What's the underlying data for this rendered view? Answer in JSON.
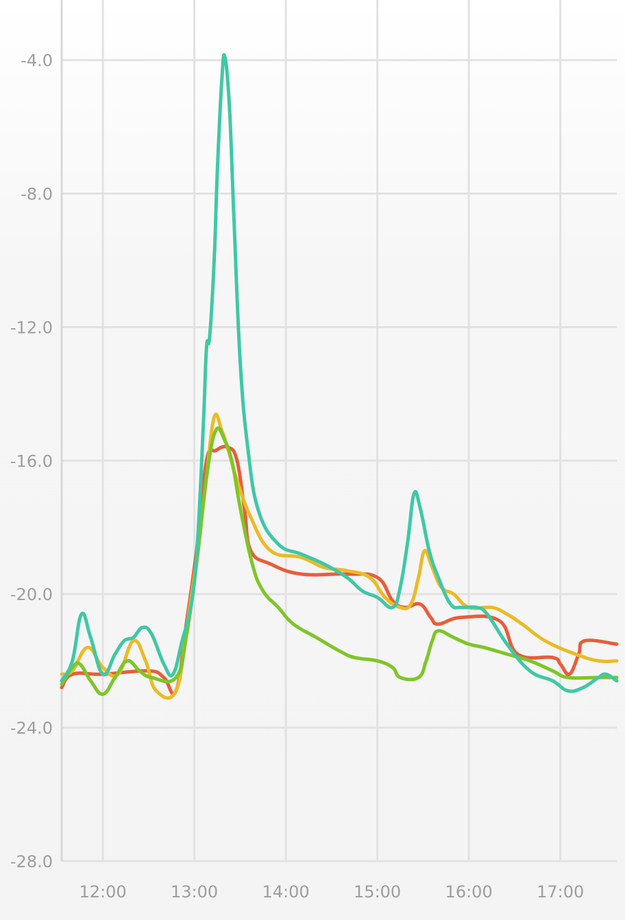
{
  "chart_data": {
    "type": "line",
    "title": "",
    "xlabel": "",
    "ylabel": "",
    "grid": true,
    "legend": "none",
    "xlim": [
      "11:33",
      "17:37"
    ],
    "ylim": [
      -28.0,
      -2.2
    ],
    "x_ticks": [
      "12:00",
      "13:00",
      "14:00",
      "15:00",
      "16:00",
      "17:00"
    ],
    "y_ticks": [
      "-4.0",
      "-8.0",
      "-12.0",
      "-16.0",
      "-20.0",
      "-24.0",
      "-28.0"
    ],
    "series": [
      {
        "color": "#e95d3a",
        "points": [
          [
            "11:33",
            -22.8
          ],
          [
            "11:40",
            -22.4
          ],
          [
            "12:00",
            -22.4
          ],
          [
            "12:30",
            -22.3
          ],
          [
            "12:40",
            -22.5
          ],
          [
            "12:48",
            -22.9
          ],
          [
            "12:55",
            -20.8
          ],
          [
            "13:02",
            -18.5
          ],
          [
            "13:08",
            -16.0
          ],
          [
            "13:14",
            -15.7
          ],
          [
            "13:22",
            -15.6
          ],
          [
            "13:28",
            -16.0
          ],
          [
            "13:33",
            -17.5
          ],
          [
            "13:37",
            -18.7
          ],
          [
            "13:50",
            -19.1
          ],
          [
            "14:10",
            -19.4
          ],
          [
            "14:40",
            -19.4
          ],
          [
            "15:00",
            -19.5
          ],
          [
            "15:10",
            -20.2
          ],
          [
            "15:18",
            -20.4
          ],
          [
            "15:28",
            -20.3
          ],
          [
            "15:35",
            -20.7
          ],
          [
            "15:40",
            -20.9
          ],
          [
            "15:55",
            -20.7
          ],
          [
            "16:20",
            -20.8
          ],
          [
            "16:32",
            -21.8
          ],
          [
            "16:55",
            -21.9
          ],
          [
            "17:00",
            -22.1
          ],
          [
            "17:06",
            -22.4
          ],
          [
            "17:12",
            -21.8
          ],
          [
            "17:16",
            -21.4
          ],
          [
            "17:37",
            -21.5
          ]
        ]
      },
      {
        "color": "#eabb27",
        "points": [
          [
            "11:33",
            -22.4
          ],
          [
            "11:40",
            -22.3
          ],
          [
            "11:50",
            -21.6
          ],
          [
            "12:00",
            -22.2
          ],
          [
            "12:10",
            -22.4
          ],
          [
            "12:20",
            -21.4
          ],
          [
            "12:28",
            -22.0
          ],
          [
            "12:35",
            -22.9
          ],
          [
            "12:48",
            -22.9
          ],
          [
            "12:55",
            -21.0
          ],
          [
            "13:02",
            -18.8
          ],
          [
            "13:08",
            -16.5
          ],
          [
            "13:13",
            -14.7
          ],
          [
            "13:18",
            -15.1
          ],
          [
            "13:23",
            -15.8
          ],
          [
            "13:28",
            -16.6
          ],
          [
            "13:37",
            -17.7
          ],
          [
            "13:50",
            -18.7
          ],
          [
            "14:10",
            -18.9
          ],
          [
            "14:25",
            -19.2
          ],
          [
            "14:40",
            -19.3
          ],
          [
            "14:55",
            -19.5
          ],
          [
            "15:05",
            -20.1
          ],
          [
            "15:15",
            -20.4
          ],
          [
            "15:22",
            -20.3
          ],
          [
            "15:27",
            -19.5
          ],
          [
            "15:31",
            -18.7
          ],
          [
            "15:36",
            -19.2
          ],
          [
            "15:42",
            -19.8
          ],
          [
            "15:50",
            -20.0
          ],
          [
            "16:00",
            -20.4
          ],
          [
            "16:15",
            -20.4
          ],
          [
            "16:25",
            -20.6
          ],
          [
            "16:35",
            -20.9
          ],
          [
            "16:50",
            -21.4
          ],
          [
            "17:10",
            -21.8
          ],
          [
            "17:25",
            -22.0
          ],
          [
            "17:37",
            -22.0
          ]
        ]
      },
      {
        "color": "#7ec627",
        "points": [
          [
            "11:33",
            -22.7
          ],
          [
            "11:40",
            -22.2
          ],
          [
            "11:45",
            -22.1
          ],
          [
            "11:52",
            -22.6
          ],
          [
            "12:00",
            -23.0
          ],
          [
            "12:08",
            -22.5
          ],
          [
            "12:16",
            -22.0
          ],
          [
            "12:24",
            -22.3
          ],
          [
            "12:32",
            -22.5
          ],
          [
            "12:48",
            -22.5
          ],
          [
            "12:55",
            -21.2
          ],
          [
            "13:02",
            -18.9
          ],
          [
            "13:08",
            -16.5
          ],
          [
            "13:14",
            -15.1
          ],
          [
            "13:20",
            -15.4
          ],
          [
            "13:25",
            -16.1
          ],
          [
            "13:30",
            -17.4
          ],
          [
            "13:38",
            -19.1
          ],
          [
            "13:45",
            -19.9
          ],
          [
            "13:55",
            -20.4
          ],
          [
            "14:05",
            -20.9
          ],
          [
            "14:20",
            -21.3
          ],
          [
            "14:35",
            -21.7
          ],
          [
            "14:45",
            -21.9
          ],
          [
            "15:00",
            -22.0
          ],
          [
            "15:10",
            -22.2
          ],
          [
            "15:15",
            -22.5
          ],
          [
            "15:27",
            -22.5
          ],
          [
            "15:32",
            -22.0
          ],
          [
            "15:36",
            -21.4
          ],
          [
            "15:40",
            -21.1
          ],
          [
            "15:50",
            -21.3
          ],
          [
            "16:00",
            -21.5
          ],
          [
            "16:10",
            -21.6
          ],
          [
            "16:25",
            -21.8
          ],
          [
            "16:40",
            -22.0
          ],
          [
            "16:55",
            -22.3
          ],
          [
            "17:05",
            -22.5
          ],
          [
            "17:25",
            -22.5
          ],
          [
            "17:37",
            -22.5
          ]
        ]
      },
      {
        "color": "#3fc8a6",
        "points": [
          [
            "11:33",
            -22.6
          ],
          [
            "11:40",
            -22.0
          ],
          [
            "11:46",
            -20.6
          ],
          [
            "11:52",
            -21.3
          ],
          [
            "12:00",
            -22.4
          ],
          [
            "12:08",
            -21.8
          ],
          [
            "12:14",
            -21.4
          ],
          [
            "12:20",
            -21.3
          ],
          [
            "12:26",
            -21.0
          ],
          [
            "12:32",
            -21.2
          ],
          [
            "12:40",
            -22.1
          ],
          [
            "12:46",
            -22.4
          ],
          [
            "12:52",
            -21.4
          ],
          [
            "12:58",
            -20.3
          ],
          [
            "13:02",
            -18.5
          ],
          [
            "13:06",
            -14.8
          ],
          [
            "13:08",
            -12.6
          ],
          [
            "13:10",
            -12.3
          ],
          [
            "13:13",
            -10.0
          ],
          [
            "13:15",
            -7.4
          ],
          [
            "13:18",
            -4.6
          ],
          [
            "13:20",
            -3.9
          ],
          [
            "13:23",
            -5.4
          ],
          [
            "13:26",
            -8.8
          ],
          [
            "13:30",
            -13.0
          ],
          [
            "13:35",
            -15.6
          ],
          [
            "13:42",
            -17.5
          ],
          [
            "13:55",
            -18.5
          ],
          [
            "14:10",
            -18.8
          ],
          [
            "14:25",
            -19.1
          ],
          [
            "14:40",
            -19.5
          ],
          [
            "14:50",
            -19.9
          ],
          [
            "15:00",
            -20.1
          ],
          [
            "15:10",
            -20.4
          ],
          [
            "15:15",
            -19.8
          ],
          [
            "15:20",
            -18.4
          ],
          [
            "15:24",
            -17.0
          ],
          [
            "15:28",
            -17.4
          ],
          [
            "15:34",
            -18.7
          ],
          [
            "15:40",
            -19.5
          ],
          [
            "15:48",
            -20.3
          ],
          [
            "15:55",
            -20.4
          ],
          [
            "16:05",
            -20.4
          ],
          [
            "16:12",
            -20.6
          ],
          [
            "16:25",
            -21.5
          ],
          [
            "16:40",
            -22.3
          ],
          [
            "16:55",
            -22.6
          ],
          [
            "17:05",
            -22.9
          ],
          [
            "17:15",
            -22.8
          ],
          [
            "17:25",
            -22.5
          ],
          [
            "17:30",
            -22.4
          ],
          [
            "17:37",
            -22.6
          ]
        ]
      }
    ]
  }
}
